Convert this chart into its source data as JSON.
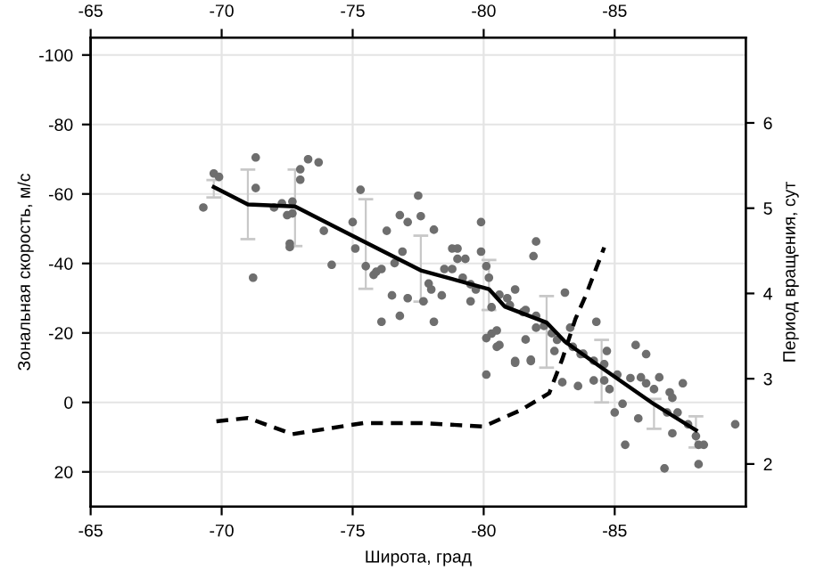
{
  "chart_data": {
    "type": "scatter",
    "xlabel": "Широта, град",
    "ylabel": "Зональная скорость, м/с",
    "y2label": "Период вращения, сут",
    "xlim": [
      -65,
      -90
    ],
    "xticks": [
      -65,
      -70,
      -75,
      -80,
      -85
    ],
    "x2lim": [
      -65,
      -90
    ],
    "x2ticks": [
      -65,
      -70,
      -75,
      -80,
      -85
    ],
    "ylim": [
      30,
      -105
    ],
    "yticks": [
      -100,
      -80,
      -60,
      -40,
      -20,
      0,
      20
    ],
    "y2lim": [
      1.5,
      7
    ],
    "y2ticks": [
      2,
      3,
      4,
      5,
      6
    ],
    "grid": true,
    "series": [
      {
        "color": "#6e6e6e",
        "marker": "circle",
        "x": [
          -69.3,
          -69.7,
          -69.9,
          -71.3,
          -71.3,
          -71.2,
          -72.0,
          -72.3,
          -72.5,
          -72.7,
          -72.6,
          -72.6,
          -72.7,
          -73,
          -73,
          -73.3,
          -73.7,
          -73.9,
          -74.2,
          -75,
          -75.1,
          -75.3,
          -75.5,
          -75.8,
          -75.9,
          -76.1,
          -76.3,
          -76.1,
          -76.5,
          -76.6,
          -76.8,
          -76.8,
          -76.9,
          -77.1,
          -77.1,
          -77.5,
          -77.6,
          -77.7,
          -77.9,
          -78,
          -78.1,
          -78.1,
          -78.4,
          -78.5,
          -78.8,
          -78.8,
          -79,
          -79.2,
          -79.3,
          -79.5,
          -79.7,
          -79.9,
          -79.9,
          -80.1,
          -80.2,
          -80.3,
          -80.3,
          -80.1,
          -80.5,
          -81.2,
          -82,
          -81.9,
          -81.6,
          -82,
          -81.2,
          -81.8,
          -79,
          -80.1,
          -80.6,
          -80.5,
          -81.2,
          -81.8,
          -81.6,
          -82,
          -82.6,
          -83.1,
          -83.3,
          -83.6,
          -83,
          -82.7,
          -83.7,
          -84.3,
          -84.7,
          -84.2,
          -84.6,
          -84.8,
          -85,
          -85.3,
          -85.8,
          -86.2,
          -85.4,
          -85.9,
          -86,
          -86.2,
          -86.7,
          -86.5,
          -86.9,
          -87.1,
          -87.2,
          -87,
          -87.4,
          -87.2,
          -87.6,
          -87.8,
          -88.1,
          -88.2,
          -88.4,
          -88.2,
          -89.6,
          -81,
          -81.5,
          -82.3,
          -82.8,
          -83.4,
          -83.8,
          -84.2,
          -84.6,
          -85.1,
          -85.6,
          -79.5,
          -80.6,
          -80.9
        ],
        "values": [
          -56.1,
          -65.9,
          -64.9,
          -70.5,
          -61.7,
          -35.9,
          -56.1,
          -57.3,
          -53.9,
          -57.8,
          -45.7,
          -44.7,
          -54.4,
          -67.1,
          -64.1,
          -70,
          -69.1,
          -49.4,
          -39.6,
          -51.9,
          -44.3,
          -61.2,
          -39.2,
          -36.7,
          -37.6,
          -38.4,
          -49.4,
          -23.2,
          -30.8,
          -40.1,
          -53.9,
          -24.9,
          -43.4,
          -51.9,
          -30,
          -59.5,
          -53.6,
          -29.1,
          -34.2,
          -32.5,
          -49.7,
          -23.2,
          -30.8,
          -38.4,
          -44.3,
          -38.4,
          -41.3,
          -35.9,
          -41.3,
          -29.1,
          -32.5,
          -51.9,
          -43.4,
          -39.2,
          -35.9,
          -27.4,
          -19.8,
          -18.5,
          -16,
          -32.5,
          -46.3,
          -42.1,
          -26.6,
          -24.9,
          -11.9,
          -11.9,
          -44.3,
          -8,
          -16.5,
          -20.7,
          -11.4,
          -12.3,
          -18.1,
          -21.5,
          -19.9,
          -31.6,
          -21.5,
          -4.7,
          -5.8,
          -14.8,
          -13.9,
          -23.2,
          -14.8,
          -6.3,
          -6.3,
          -3.8,
          2.9,
          0.4,
          -16.5,
          -13.9,
          12.2,
          4.6,
          -7.2,
          -5.5,
          -7.2,
          -3.8,
          19,
          -2.9,
          -1.3,
          2.9,
          2.9,
          8.9,
          -5.5,
          6.3,
          9.7,
          12.2,
          12.2,
          17.8,
          6.3,
          -28,
          -26,
          -22,
          -18,
          -16,
          -14,
          -12,
          -11,
          -8,
          -7,
          -34,
          -31,
          -30
        ]
      },
      {
        "type": "line",
        "color": "#000000",
        "line_style": "solid",
        "marker": "none",
        "x": [
          -69.7,
          -71,
          -72.8,
          -75.5,
          -77.6,
          -80.2,
          -80.8,
          -82.4,
          -83.1,
          -84.5,
          -86.5,
          -88.1
        ],
        "values": [
          -62,
          -57,
          -56.4,
          -46,
          -38,
          -32.6,
          -27.6,
          -23,
          -17.5,
          -10,
          0.5,
          8
        ],
        "errors": [
          [
            -64,
            -59
          ],
          [
            -67,
            -47
          ],
          [
            -67,
            -45
          ],
          [
            -58.5,
            -32.7
          ],
          [
            -48,
            -29
          ],
          [
            -41,
            -26.6
          ],
          null,
          [
            -30.6,
            -10
          ],
          null,
          [
            -18,
            0
          ],
          [
            -1,
            7.6
          ],
          [
            4,
            13
          ]
        ]
      },
      {
        "type": "line",
        "axis": "y2",
        "color": "#000000",
        "line_style": "dashed",
        "marker": "none",
        "x": [
          -69.8,
          -71,
          -72.7,
          -75.4,
          -77.6,
          -80,
          -81.4,
          -82.5,
          -83,
          -83.5,
          -83.9,
          -84.6
        ],
        "values": [
          2.5,
          2.54,
          2.35,
          2.48,
          2.48,
          2.44,
          2.63,
          2.83,
          3.23,
          3.7,
          3.98,
          4.54
        ]
      }
    ]
  }
}
